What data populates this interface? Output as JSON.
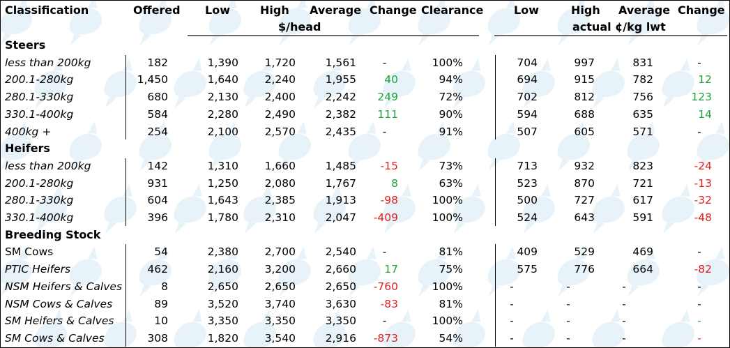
{
  "headers": {
    "classification": "Classification",
    "offered": "Offered",
    "low": "Low",
    "high": "High",
    "average": "Average",
    "change": "Change",
    "clearance": "Clearance",
    "low2": "Low",
    "high2": "High",
    "average2": "Average",
    "change2": "Change",
    "unit_head": "$/head",
    "unit_kg": "actual ¢/kg lwt"
  },
  "colors": {
    "positive": "#1fa23a",
    "negative": "#e02020",
    "watermark": "#d6e9f5"
  },
  "rows": [
    {
      "type": "section",
      "label": "Steers"
    },
    {
      "type": "data",
      "label": "less than 200kg",
      "italic": true,
      "offered": "182",
      "low": "1,390",
      "high": "1,720",
      "avg": "1,561",
      "chg": "-",
      "chg_s": "neu",
      "clr": "100%",
      "low2": "704",
      "high2": "997",
      "avg2": "831",
      "chg2": "-",
      "chg2_s": "neu"
    },
    {
      "type": "data",
      "label": "200.1-280kg",
      "italic": true,
      "offered": "1,450",
      "low": "1,640",
      "high": "2,240",
      "avg": "1,955",
      "chg": "40",
      "chg_s": "pos",
      "clr": "94%",
      "low2": "694",
      "high2": "915",
      "avg2": "782",
      "chg2": "12",
      "chg2_s": "pos"
    },
    {
      "type": "data",
      "label": "280.1-330kg",
      "italic": true,
      "offered": "680",
      "low": "2,130",
      "high": "2,400",
      "avg": "2,242",
      "chg": "249",
      "chg_s": "pos",
      "clr": "72%",
      "low2": "702",
      "high2": "812",
      "avg2": "756",
      "chg2": "123",
      "chg2_s": "pos"
    },
    {
      "type": "data",
      "label": "330.1-400kg",
      "italic": true,
      "offered": "584",
      "low": "2,280",
      "high": "2,490",
      "avg": "2,382",
      "chg": "111",
      "chg_s": "pos",
      "clr": "90%",
      "low2": "594",
      "high2": "688",
      "avg2": "635",
      "chg2": "14",
      "chg2_s": "pos"
    },
    {
      "type": "data",
      "label": "400kg +",
      "italic": true,
      "offered": "254",
      "low": "2,100",
      "high": "2,570",
      "avg": "2,435",
      "chg": "-",
      "chg_s": "neu",
      "clr": "91%",
      "low2": "507",
      "high2": "605",
      "avg2": "571",
      "chg2": "-",
      "chg2_s": "neu"
    },
    {
      "type": "section",
      "label": "Heifers"
    },
    {
      "type": "data",
      "label": "less than 200kg",
      "italic": true,
      "offered": "142",
      "low": "1,310",
      "high": "1,660",
      "avg": "1,485",
      "chg": "-15",
      "chg_s": "neg",
      "clr": "73%",
      "low2": "713",
      "high2": "932",
      "avg2": "823",
      "chg2": "-24",
      "chg2_s": "neg"
    },
    {
      "type": "data",
      "label": "200.1-280kg",
      "italic": true,
      "offered": "931",
      "low": "1,250",
      "high": "2,080",
      "avg": "1,767",
      "chg": "8",
      "chg_s": "pos",
      "clr": "63%",
      "low2": "523",
      "high2": "870",
      "avg2": "721",
      "chg2": "-13",
      "chg2_s": "neg"
    },
    {
      "type": "data",
      "label": "280.1-330kg",
      "italic": true,
      "offered": "604",
      "low": "1,643",
      "high": "2,385",
      "avg": "1,913",
      "chg": "-98",
      "chg_s": "neg",
      "clr": "100%",
      "low2": "500",
      "high2": "727",
      "avg2": "617",
      "chg2": "-32",
      "chg2_s": "neg"
    },
    {
      "type": "data",
      "label": "330.1-400kg",
      "italic": true,
      "offered": "396",
      "low": "1,780",
      "high": "2,310",
      "avg": "2,047",
      "chg": "-409",
      "chg_s": "neg",
      "clr": "100%",
      "low2": "524",
      "high2": "643",
      "avg2": "591",
      "chg2": "-48",
      "chg2_s": "neg"
    },
    {
      "type": "section",
      "label": "Breeding Stock"
    },
    {
      "type": "data",
      "label": "SM Cows",
      "italic": false,
      "offered": "54",
      "low": "2,380",
      "high": "2,700",
      "avg": "2,540",
      "chg": "-",
      "chg_s": "neu",
      "clr": "81%",
      "low2": "409",
      "high2": "529",
      "avg2": "469",
      "chg2": "-",
      "chg2_s": "neu"
    },
    {
      "type": "data",
      "label": "PTIC Heifers",
      "italic": true,
      "offered": "462",
      "low": "2,160",
      "high": "3,200",
      "avg": "2,660",
      "chg": "17",
      "chg_s": "pos",
      "clr": "75%",
      "low2": "575",
      "high2": "776",
      "avg2": "664",
      "chg2": "-82",
      "chg2_s": "neg"
    },
    {
      "type": "data",
      "label": "NSM Heifers & Calves",
      "italic": true,
      "offered": "8",
      "low": "2,650",
      "high": "2,650",
      "avg": "2,650",
      "chg": "-760",
      "chg_s": "neg",
      "clr": "100%",
      "low2": "-",
      "high2": "-",
      "avg2": "-",
      "chg2": "-",
      "chg2_s": "neu"
    },
    {
      "type": "data",
      "label": "NSM Cows & Calves",
      "italic": true,
      "offered": "89",
      "low": "3,520",
      "high": "3,740",
      "avg": "3,630",
      "chg": "-83",
      "chg_s": "neg",
      "clr": "81%",
      "low2": "-",
      "high2": "-",
      "avg2": "-",
      "chg2": "-",
      "chg2_s": "neu"
    },
    {
      "type": "data",
      "label": "SM Heifers & Calves",
      "italic": true,
      "offered": "10",
      "low": "3,350",
      "high": "3,350",
      "avg": "3,350",
      "chg": "-",
      "chg_s": "neu",
      "clr": "100%",
      "low2": "-",
      "high2": "-",
      "avg2": "-",
      "chg2": "-",
      "chg2_s": "pos"
    },
    {
      "type": "data",
      "label": "SM Cows & Calves",
      "italic": true,
      "offered": "308",
      "low": "1,820",
      "high": "3,540",
      "avg": "2,916",
      "chg": "-873",
      "chg_s": "neg",
      "clr": "54%",
      "low2": "-",
      "high2": "-",
      "avg2": "-",
      "chg2": "-",
      "chg2_s": "neg"
    }
  ]
}
